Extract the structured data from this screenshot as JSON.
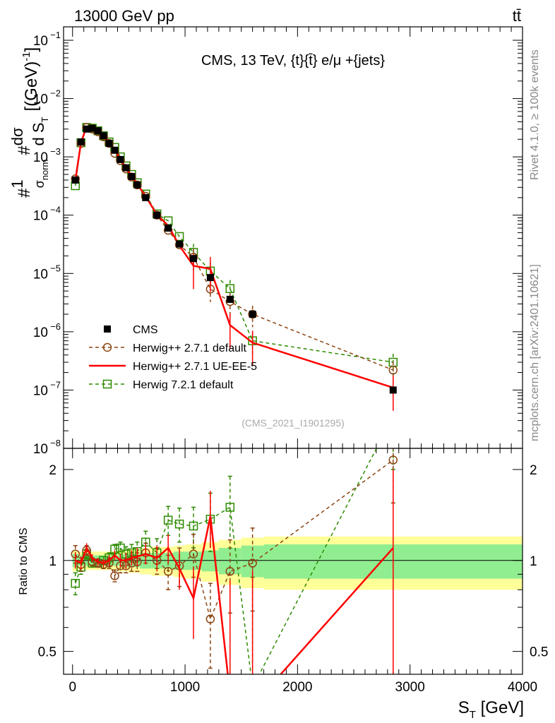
{
  "header": {
    "left_label": "13000 GeV pp",
    "right_label": "tt̄",
    "side_label_top": "Rivet 4.1.0, ≥ 100k events",
    "side_label_bottom": "mcplots.cern.ch [arXiv:2401.10621]"
  },
  "colors": {
    "cms": "#000000",
    "herwigpp_default": "#8b4513",
    "herwigpp_ueee5": "#ff0000",
    "herwig7": "#2e8b00",
    "band_inner": "#90ee90",
    "band_outer": "#ffff99"
  },
  "chart_data": [
    {
      "type": "line",
      "panel": "main",
      "title": "CMS, 13 TeV, {t}{t̄} e/μ +{jets}",
      "ylabel": "#1/σnorm #dσ/dST [(GeV)^-1]",
      "watermark": "(CMS_2021_I1901295)",
      "yscale": "log",
      "ylim": [
        1e-08,
        0.17
      ],
      "xlim": [
        -80,
        4000
      ],
      "y_ticks": [
        {
          "value": 1e-08,
          "label": "10",
          "exp": "−8"
        },
        {
          "value": 1e-07,
          "label": "10",
          "exp": "−7"
        },
        {
          "value": 1e-06,
          "label": "10",
          "exp": "−6"
        },
        {
          "value": 1e-05,
          "label": "10",
          "exp": "−5"
        },
        {
          "value": 0.0001,
          "label": "10",
          "exp": "−4"
        },
        {
          "value": 0.001,
          "label": "10",
          "exp": "−3"
        },
        {
          "value": 0.01,
          "label": "10",
          "exp": "−2"
        },
        {
          "value": 0.1,
          "label": "10",
          "exp": "−1"
        }
      ],
      "legend": [
        {
          "key": "cms",
          "label": "CMS"
        },
        {
          "key": "hpp",
          "label": "Herwig++ 2.7.1 default"
        },
        {
          "key": "ue",
          "label": "Herwig++ 2.7.1 UE-EE-5"
        },
        {
          "key": "h7",
          "label": "Herwig 7.2.1 default"
        }
      ],
      "series": [
        {
          "name": "CMS",
          "key": "cms",
          "x": [
            25,
            75,
            125,
            175,
            225,
            275,
            325,
            375,
            425,
            475,
            525,
            575,
            650,
            750,
            850,
            950,
            1075,
            1225,
            1400,
            1600,
            2850
          ],
          "y": [
            0.0004,
            0.0018,
            0.003,
            0.0031,
            0.0028,
            0.0023,
            0.0017,
            0.0013,
            0.0009,
            0.00065,
            0.00046,
            0.00033,
            0.0002,
            0.0001,
            6e-05,
            3.2e-05,
            1.8e-05,
            8.5e-06,
            3.6e-06,
            2e-06,
            1e-07
          ]
        },
        {
          "name": "Herwig++ 2.7.1 default",
          "key": "hpp",
          "x": [
            25,
            75,
            125,
            175,
            225,
            275,
            325,
            375,
            425,
            475,
            525,
            575,
            650,
            750,
            850,
            950,
            1075,
            1225,
            1400,
            1600,
            2850
          ],
          "y": [
            0.00042,
            0.0017,
            0.0032,
            0.003,
            0.0027,
            0.0022,
            0.0017,
            0.00115,
            0.00086,
            0.00062,
            0.00045,
            0.00033,
            0.00021,
            0.0001,
            5.5e-05,
            3.1e-05,
            1.9e-05,
            5.4e-06,
            3.3e-06,
            2e-06,
            2.2e-07
          ]
        },
        {
          "name": "Herwig++ 2.7.1 UE-EE-5",
          "key": "ue",
          "x": [
            25,
            75,
            125,
            175,
            225,
            275,
            325,
            375,
            425,
            475,
            525,
            575,
            650,
            750,
            850,
            950,
            1075,
            1225,
            1400,
            1600,
            2850
          ],
          "y": [
            0.0004,
            0.00175,
            0.0033,
            0.00315,
            0.00275,
            0.00225,
            0.0017,
            0.00135,
            0.0009,
            0.00065,
            0.00047,
            0.00034,
            0.00021,
            0.000102,
            6.6e-05,
            3e-05,
            1.35e-05,
            1.2e-05,
            1.3e-06,
            6.5e-07,
            1.1e-07
          ]
        },
        {
          "name": "Herwig 7.2.1 default",
          "key": "h7",
          "x": [
            25,
            75,
            125,
            175,
            225,
            275,
            325,
            375,
            425,
            475,
            525,
            575,
            650,
            750,
            850,
            950,
            1075,
            1225,
            1400,
            1600,
            2850
          ],
          "y": [
            0.00032,
            0.00175,
            0.0032,
            0.0031,
            0.0028,
            0.0023,
            0.0018,
            0.00145,
            0.001,
            0.0007,
            0.0005,
            0.00036,
            0.00023,
            0.000105,
            8e-05,
            4.3e-05,
            2.3e-05,
            1.1e-05,
            5.5e-06,
            7e-07,
            3e-07
          ]
        }
      ]
    },
    {
      "type": "line",
      "panel": "ratio",
      "xlabel": "ST [GeV]",
      "ylabel": "Ratio to CMS",
      "ylim": [
        0.42,
        2.35
      ],
      "xlim": [
        -80,
        4000
      ],
      "x_ticks": [
        0,
        1000,
        2000,
        3000,
        4000
      ],
      "y_ticks": [
        0.5,
        1,
        2
      ],
      "bands": {
        "x_edges": [
          0,
          50,
          100,
          150,
          200,
          250,
          300,
          350,
          400,
          450,
          500,
          550,
          600,
          700,
          800,
          900,
          1000,
          1150,
          1300,
          1500,
          1700,
          4000
        ],
        "inner": [
          0.05,
          0.04,
          0.04,
          0.04,
          0.04,
          0.04,
          0.04,
          0.04,
          0.04,
          0.05,
          0.05,
          0.05,
          0.06,
          0.06,
          0.06,
          0.07,
          0.07,
          0.08,
          0.1,
          0.12,
          0.13
        ],
        "outer": [
          0.08,
          0.07,
          0.07,
          0.07,
          0.07,
          0.07,
          0.07,
          0.07,
          0.08,
          0.08,
          0.09,
          0.09,
          0.1,
          0.11,
          0.11,
          0.12,
          0.13,
          0.15,
          0.17,
          0.19,
          0.2
        ]
      },
      "series": [
        {
          "name": "Herwig++ 2.7.1 default",
          "key": "hpp",
          "x": [
            25,
            75,
            125,
            175,
            225,
            275,
            325,
            375,
            425,
            475,
            525,
            575,
            650,
            750,
            850,
            950,
            1075,
            1225,
            1400,
            1600,
            2850
          ],
          "y": [
            1.05,
            0.97,
            1.08,
            0.99,
            0.98,
            0.97,
            0.98,
            0.89,
            0.96,
            0.96,
            0.98,
            0.99,
            1.06,
            1.0,
            0.92,
            0.96,
            1.05,
            0.64,
            0.92,
            0.98,
            2.15
          ],
          "err": [
            0.07,
            0.05,
            0.04,
            0.03,
            0.03,
            0.03,
            0.04,
            0.04,
            0.05,
            0.05,
            0.06,
            0.07,
            0.08,
            0.1,
            0.12,
            0.14,
            0.17,
            0.2,
            0.25,
            0.3,
            0.6
          ]
        },
        {
          "name": "Herwig++ 2.7.1 UE-EE-5",
          "key": "ue",
          "x": [
            25,
            75,
            125,
            175,
            225,
            275,
            325,
            375,
            425,
            475,
            525,
            575,
            650,
            750,
            850,
            950,
            1075,
            1225,
            1400,
            1600,
            2850
          ],
          "y": [
            1.0,
            0.98,
            1.1,
            1.02,
            0.99,
            0.98,
            1.0,
            1.04,
            1.0,
            1.0,
            1.02,
            1.03,
            1.05,
            1.02,
            1.1,
            0.94,
            0.75,
            1.4,
            0.36,
            0.33,
            1.1
          ],
          "err": [
            0.06,
            0.05,
            0.04,
            0.03,
            0.03,
            0.03,
            0.04,
            0.04,
            0.05,
            0.06,
            0.06,
            0.07,
            0.08,
            0.1,
            0.12,
            0.14,
            0.2,
            0.3,
            0.5,
            0.6,
            0.9
          ]
        },
        {
          "name": "Herwig 7.2.1 default",
          "key": "h7",
          "x": [
            25,
            75,
            125,
            175,
            225,
            275,
            325,
            375,
            425,
            475,
            525,
            575,
            650,
            750,
            850,
            950,
            1075,
            1225,
            1400,
            1600,
            2850
          ],
          "y": [
            0.84,
            0.95,
            1.05,
            0.98,
            0.98,
            1.0,
            1.02,
            1.09,
            1.1,
            1.05,
            1.06,
            1.07,
            1.15,
            1.06,
            1.36,
            1.32,
            1.3,
            1.37,
            1.5,
            0.38,
            3.0
          ],
          "err": [
            0.07,
            0.05,
            0.04,
            0.03,
            0.03,
            0.03,
            0.04,
            0.04,
            0.05,
            0.06,
            0.07,
            0.08,
            0.1,
            0.12,
            0.15,
            0.17,
            0.2,
            0.3,
            0.4,
            0.5,
            1.0
          ]
        }
      ]
    }
  ]
}
